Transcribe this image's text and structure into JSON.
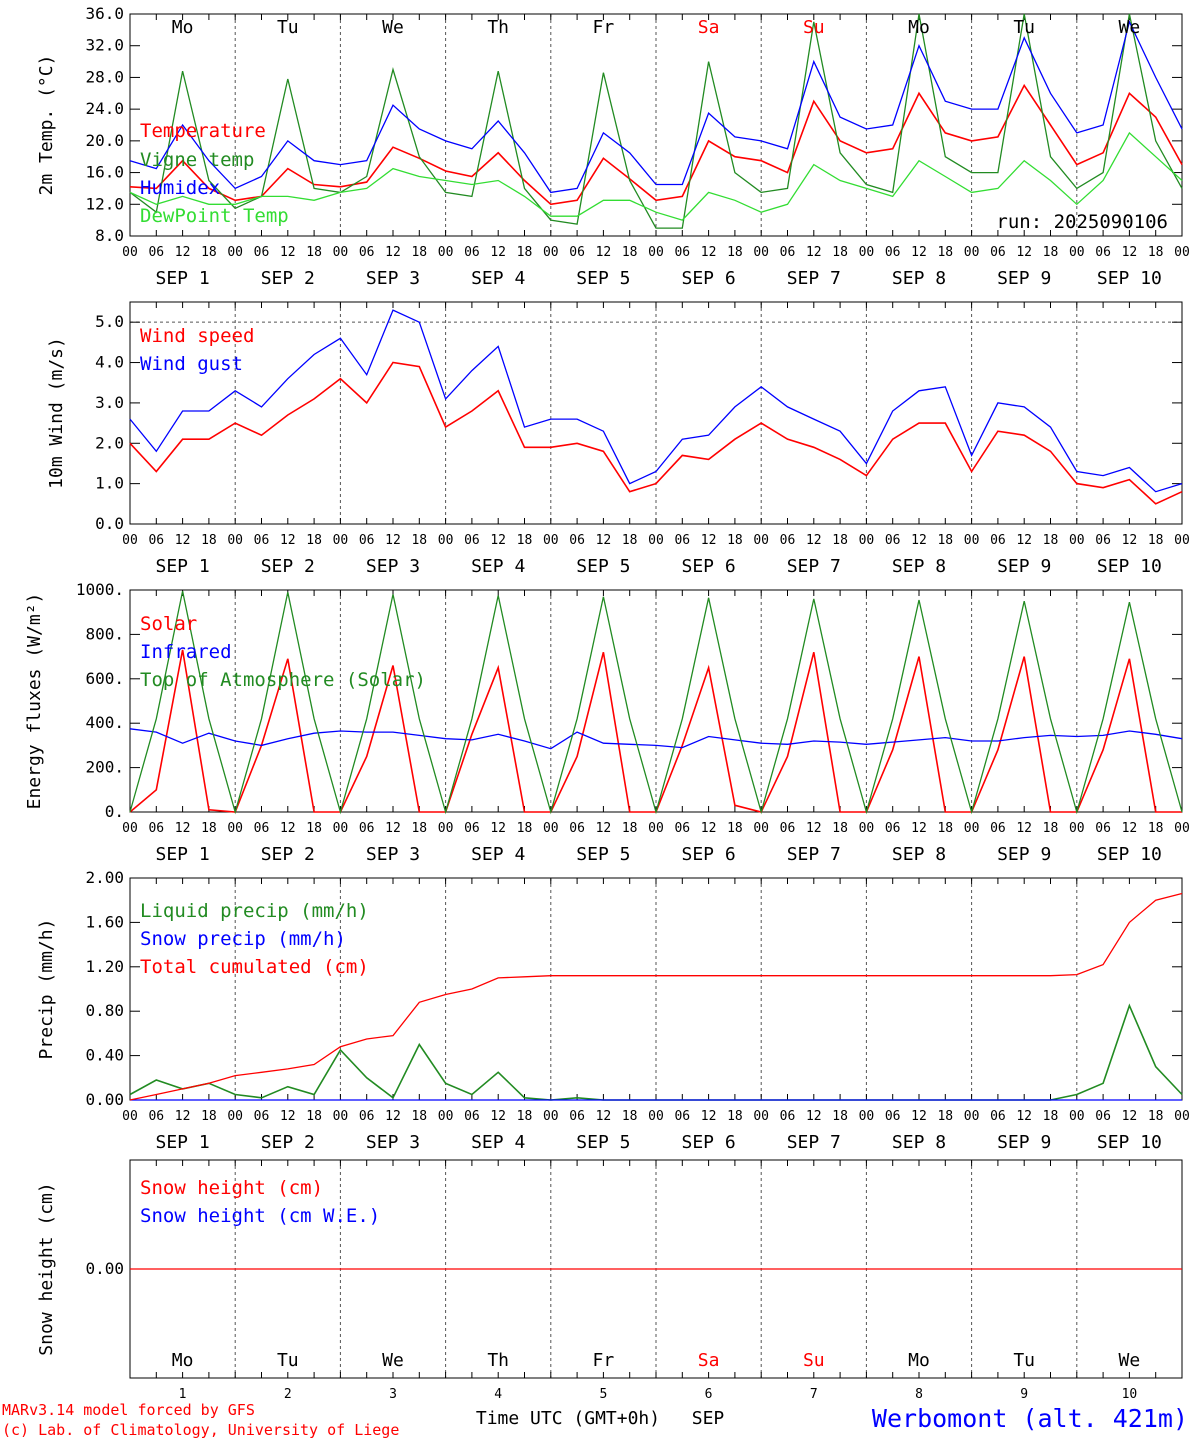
{
  "colors": {
    "red": "#ff0000",
    "green": "#228b22",
    "blue": "#0000ff",
    "lightgreen": "#33dd33",
    "grid": "#555555"
  },
  "chart_data": [
    {
      "type": "line",
      "ylabel": "2m Temp. (°C)",
      "ylim": [
        8,
        36
      ],
      "ticks": [
        "36.0",
        "32.0",
        "28.0",
        "24.0",
        "20.0",
        "16.0",
        "12.0",
        "8.0"
      ],
      "tick_values": [
        36,
        32,
        28,
        24,
        20,
        16,
        12,
        8
      ],
      "annotation": "run: 2025090106",
      "show_days": true,
      "x_hours": [
        0,
        6,
        12,
        18,
        24,
        30,
        36,
        42,
        48,
        54,
        60,
        66,
        72,
        78,
        84,
        90,
        96,
        102,
        108,
        114,
        120,
        126,
        132,
        138,
        144,
        150,
        156,
        162,
        168,
        174,
        180,
        186,
        192,
        198,
        204,
        210,
        216,
        222,
        228,
        234,
        240
      ],
      "series": [
        {
          "name": "Temperature",
          "color": "#ff0000",
          "values": [
            14.2,
            14.0,
            17.5,
            14.0,
            12.5,
            13.0,
            16.5,
            14.5,
            14.2,
            14.8,
            19.2,
            17.8,
            16.2,
            15.5,
            18.5,
            15.0,
            12.0,
            12.5,
            17.8,
            15.2,
            12.5,
            13.0,
            20.0,
            18.0,
            17.5,
            16.0,
            25.0,
            20.0,
            18.5,
            19.0,
            26.0,
            21.0,
            20.0,
            20.5,
            27.0,
            22.0,
            17.0,
            18.5,
            26.0,
            23.0,
            17.0
          ]
        },
        {
          "name": "Vigne temp",
          "color": "#228b22",
          "values": [
            13.5,
            11.0,
            28.8,
            15.0,
            11.5,
            13.0,
            27.8,
            14.0,
            13.5,
            15.5,
            29.0,
            18.0,
            13.5,
            13.0,
            28.8,
            14.0,
            10.0,
            9.5,
            28.6,
            15.0,
            9.0,
            9.0,
            30.0,
            16.0,
            13.5,
            14.0,
            35.0,
            18.5,
            14.5,
            13.5,
            36.0,
            18.0,
            16.0,
            16.0,
            36.0,
            18.0,
            14.0,
            16.0,
            36.0,
            20.0,
            14.0
          ]
        },
        {
          "name": "Humidex",
          "color": "#0000ff",
          "values": [
            17.5,
            16.5,
            22.0,
            17.5,
            14.0,
            15.5,
            20.0,
            17.5,
            17.0,
            17.5,
            24.5,
            21.5,
            20.0,
            19.0,
            22.5,
            18.5,
            13.5,
            14.0,
            21.0,
            18.5,
            14.5,
            14.5,
            23.5,
            20.5,
            20.0,
            19.0,
            30.0,
            23.0,
            21.5,
            22.0,
            32.0,
            25.0,
            24.0,
            24.0,
            33.0,
            26.0,
            21.0,
            22.0,
            35.0,
            28.0,
            21.5
          ]
        },
        {
          "name": "DewPoint Temp",
          "color": "#33dd33",
          "values": [
            13.5,
            12.0,
            13.0,
            12.0,
            12.0,
            13.0,
            13.0,
            12.5,
            13.5,
            14.0,
            16.5,
            15.5,
            15.0,
            14.5,
            15.0,
            13.0,
            10.5,
            10.5,
            12.5,
            12.5,
            11.0,
            10.0,
            13.5,
            12.5,
            11.0,
            12.0,
            17.0,
            15.0,
            14.0,
            13.0,
            17.5,
            15.5,
            13.5,
            14.0,
            17.5,
            15.0,
            12.0,
            15.0,
            21.0,
            18.0,
            15.0
          ]
        }
      ]
    },
    {
      "type": "line",
      "ylabel": "10m Wind (m/s)",
      "ylim": [
        0,
        5.5
      ],
      "ticks": [
        "5.0",
        "4.0",
        "3.0",
        "2.0",
        "1.0",
        "0.0"
      ],
      "tick_values": [
        5,
        4,
        3,
        2,
        1,
        0
      ],
      "dashed_y": 5.0,
      "x_hours": [
        0,
        6,
        12,
        18,
        24,
        30,
        36,
        42,
        48,
        54,
        60,
        66,
        72,
        78,
        84,
        90,
        96,
        102,
        108,
        114,
        120,
        126,
        132,
        138,
        144,
        150,
        156,
        162,
        168,
        174,
        180,
        186,
        192,
        198,
        204,
        210,
        216,
        222,
        228,
        234,
        240
      ],
      "series": [
        {
          "name": "Wind speed",
          "color": "#ff0000",
          "values": [
            2.0,
            1.3,
            2.1,
            2.1,
            2.5,
            2.2,
            2.7,
            3.1,
            3.6,
            3.0,
            4.0,
            3.9,
            2.4,
            2.8,
            3.3,
            1.9,
            1.9,
            2.0,
            1.8,
            0.8,
            1.0,
            1.7,
            1.6,
            2.1,
            2.5,
            2.1,
            1.9,
            1.6,
            1.2,
            2.1,
            2.5,
            2.5,
            1.3,
            2.3,
            2.2,
            1.8,
            1.0,
            0.9,
            1.1,
            0.5,
            0.8
          ]
        },
        {
          "name": "Wind gust",
          "color": "#0000ff",
          "values": [
            2.6,
            1.8,
            2.8,
            2.8,
            3.3,
            2.9,
            3.6,
            4.2,
            4.6,
            3.7,
            5.3,
            5.0,
            3.1,
            3.8,
            4.4,
            2.4,
            2.6,
            2.6,
            2.3,
            1.0,
            1.3,
            2.1,
            2.2,
            2.9,
            3.4,
            2.9,
            2.6,
            2.3,
            1.5,
            2.8,
            3.3,
            3.4,
            1.7,
            3.0,
            2.9,
            2.4,
            1.3,
            1.2,
            1.4,
            0.8,
            1.0
          ]
        }
      ]
    },
    {
      "type": "line",
      "ylabel": "Energy fluxes (W/m²)",
      "ylim": [
        0,
        1000
      ],
      "ticks": [
        "1000.",
        "800.",
        "600.",
        "400.",
        "200.",
        "0."
      ],
      "tick_values": [
        1000,
        800,
        600,
        400,
        200,
        0
      ],
      "x_hours": [
        0,
        6,
        12,
        18,
        24,
        30,
        36,
        42,
        48,
        54,
        60,
        66,
        72,
        78,
        84,
        90,
        96,
        102,
        108,
        114,
        120,
        126,
        132,
        138,
        144,
        150,
        156,
        162,
        168,
        174,
        180,
        186,
        192,
        198,
        204,
        210,
        216,
        222,
        228,
        234,
        240
      ],
      "series": [
        {
          "name": "Solar",
          "color": "#ff0000",
          "values": [
            0,
            100,
            730,
            10,
            0,
            300,
            690,
            0,
            0,
            250,
            660,
            0,
            0,
            350,
            650,
            0,
            0,
            250,
            720,
            0,
            0,
            300,
            650,
            30,
            0,
            250,
            720,
            0,
            0,
            280,
            700,
            0,
            0,
            280,
            700,
            0,
            0,
            280,
            690,
            0,
            0
          ]
        },
        {
          "name": "Infrared",
          "color": "#0000ff",
          "values": [
            375,
            360,
            310,
            355,
            320,
            300,
            330,
            355,
            365,
            360,
            360,
            345,
            330,
            325,
            350,
            320,
            285,
            360,
            310,
            305,
            300,
            290,
            340,
            325,
            310,
            305,
            320,
            315,
            305,
            315,
            325,
            335,
            320,
            320,
            335,
            345,
            340,
            345,
            365,
            350,
            330
          ]
        },
        {
          "name": "Top of Atmosphere (Solar)",
          "color": "#228b22",
          "values": [
            0,
            420,
            995,
            420,
            0,
            420,
            990,
            420,
            0,
            420,
            980,
            420,
            0,
            420,
            975,
            420,
            0,
            420,
            970,
            420,
            0,
            420,
            965,
            420,
            0,
            420,
            960,
            420,
            0,
            420,
            955,
            420,
            0,
            420,
            950,
            420,
            0,
            420,
            945,
            420,
            0
          ]
        }
      ]
    },
    {
      "type": "line",
      "ylabel": "Precip (mm/h)",
      "ylim": [
        0,
        2.0
      ],
      "ticks": [
        "2.00",
        "1.60",
        "1.20",
        "0.80",
        "0.40",
        "0.00"
      ],
      "tick_values": [
        2.0,
        1.6,
        1.2,
        0.8,
        0.4,
        0.0
      ],
      "x_hours": [
        0,
        6,
        12,
        18,
        24,
        30,
        36,
        42,
        48,
        54,
        60,
        66,
        72,
        78,
        84,
        90,
        96,
        102,
        108,
        114,
        120,
        126,
        132,
        138,
        144,
        150,
        156,
        162,
        168,
        174,
        180,
        186,
        192,
        198,
        204,
        210,
        216,
        222,
        228,
        234,
        240
      ],
      "series": [
        {
          "name": "Liquid precip (mm/h)",
          "color": "#228b22",
          "values": [
            0.05,
            0.18,
            0.1,
            0.15,
            0.05,
            0.02,
            0.12,
            0.05,
            0.45,
            0.2,
            0.02,
            0.5,
            0.15,
            0.05,
            0.25,
            0.02,
            0.0,
            0.02,
            0.0,
            0.0,
            0.0,
            0.0,
            0.0,
            0.0,
            0.0,
            0.0,
            0.0,
            0.0,
            0.0,
            0.0,
            0.0,
            0.0,
            0.0,
            0.0,
            0.0,
            0.0,
            0.05,
            0.15,
            0.85,
            0.3,
            0.05
          ]
        },
        {
          "name": "Snow precip (mm/h)",
          "color": "#0000ff",
          "values": [
            0,
            0,
            0,
            0,
            0,
            0,
            0,
            0,
            0,
            0,
            0,
            0,
            0,
            0,
            0,
            0,
            0,
            0,
            0,
            0,
            0,
            0,
            0,
            0,
            0,
            0,
            0,
            0,
            0,
            0,
            0,
            0,
            0,
            0,
            0,
            0,
            0,
            0,
            0,
            0,
            0
          ]
        },
        {
          "name": "Total cumulated (cm)",
          "color": "#ff0000",
          "values": [
            0.0,
            0.05,
            0.1,
            0.15,
            0.22,
            0.25,
            0.28,
            0.32,
            0.48,
            0.55,
            0.58,
            0.88,
            0.95,
            1.0,
            1.1,
            1.11,
            1.12,
            1.12,
            1.12,
            1.12,
            1.12,
            1.12,
            1.12,
            1.12,
            1.12,
            1.12,
            1.12,
            1.12,
            1.12,
            1.12,
            1.12,
            1.12,
            1.12,
            1.12,
            1.12,
            1.12,
            1.13,
            1.22,
            1.6,
            1.8,
            1.86
          ]
        }
      ]
    },
    {
      "type": "line",
      "ylabel": "Snow height (cm)",
      "ylim": [
        -1,
        1
      ],
      "ticks": [
        "0.00"
      ],
      "tick_values": [
        0
      ],
      "x_hours": [
        0,
        240
      ],
      "series": [
        {
          "name": "Snow height (cm)",
          "color": "#ff0000",
          "values": [
            0,
            0
          ]
        },
        {
          "name": "Snow height (cm W.E.)",
          "color": "#0000ff",
          "values": []
        }
      ]
    }
  ],
  "days": [
    {
      "abbr": "Mo",
      "date": "SEP  1",
      "num": "1",
      "color": "#000000"
    },
    {
      "abbr": "Tu",
      "date": "SEP  2",
      "num": "2",
      "color": "#000000"
    },
    {
      "abbr": "We",
      "date": "SEP  3",
      "num": "3",
      "color": "#000000"
    },
    {
      "abbr": "Th",
      "date": "SEP  4",
      "num": "4",
      "color": "#000000"
    },
    {
      "abbr": "Fr",
      "date": "SEP  5",
      "num": "5",
      "color": "#000000"
    },
    {
      "abbr": "Sa",
      "date": "SEP  6",
      "num": "6",
      "color": "#ff0000"
    },
    {
      "abbr": "Su",
      "date": "SEP  7",
      "num": "7",
      "color": "#ff0000"
    },
    {
      "abbr": "Mo",
      "date": "SEP  8",
      "num": "8",
      "color": "#000000"
    },
    {
      "abbr": "Tu",
      "date": "SEP  9",
      "num": "9",
      "color": "#000000"
    },
    {
      "abbr": "We",
      "date": "SEP 10",
      "num": "10",
      "color": "#000000"
    }
  ],
  "hour_ticks": [
    "00",
    "06",
    "12",
    "18"
  ],
  "final_hour_tick": "00",
  "footer": {
    "credit_line1": "MARv3.14 model forced by GFS",
    "credit_line2": "(c) Lab. of Climatology, University of Liege",
    "xlabel": "Time UTC (GMT+0h)",
    "month": "SEP",
    "station": "Werbomont (alt. 421m)"
  }
}
